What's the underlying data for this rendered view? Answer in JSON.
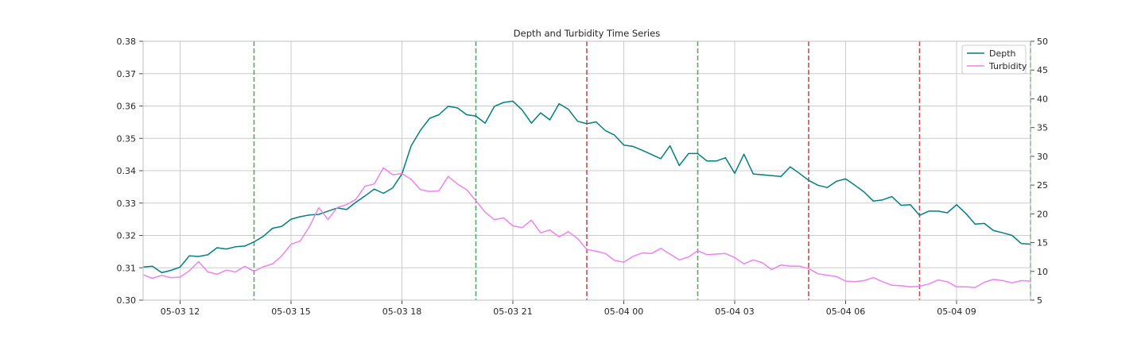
{
  "chart_data": {
    "type": "line",
    "title": "Depth and Turbidity Time Series",
    "xlabel": "",
    "ylabel": "",
    "grid": true,
    "legend_position": "top-right",
    "x_tick_labels": [
      "05-03 12",
      "05-03 15",
      "05-03 18",
      "05-03 21",
      "05-04 00",
      "05-04 03",
      "05-04 06",
      "05-04 09"
    ],
    "y_left_ticks": [
      "0.30",
      "0.31",
      "0.32",
      "0.33",
      "0.34",
      "0.35",
      "0.36",
      "0.37",
      "0.38"
    ],
    "y_right_ticks": [
      "5",
      "10",
      "15",
      "20",
      "25",
      "30",
      "35",
      "40",
      "45",
      "50"
    ],
    "ylim_left": [
      0.3,
      0.38
    ],
    "ylim_right": [
      5,
      50
    ],
    "x_start": "05-03 11:00",
    "x_end": "05-04 11:00",
    "series": [
      {
        "name": "Depth",
        "axis": "left",
        "color": "#008080",
        "points": [
          [
            "05-03 11:00",
            0.3102
          ],
          [
            "05-03 11:15",
            0.3105
          ],
          [
            "05-03 11:30",
            0.3085
          ],
          [
            "05-03 11:45",
            0.3092
          ],
          [
            "05-03 12:00",
            0.3102
          ],
          [
            "05-03 12:15",
            0.3137
          ],
          [
            "05-03 12:30",
            0.3135
          ],
          [
            "05-03 12:45",
            0.314
          ],
          [
            "05-03 13:00",
            0.3162
          ],
          [
            "05-03 13:15",
            0.3158
          ],
          [
            "05-03 13:30",
            0.3165
          ],
          [
            "05-03 13:45",
            0.3167
          ],
          [
            "05-03 14:00",
            0.318
          ],
          [
            "05-03 14:15",
            0.3197
          ],
          [
            "05-03 14:30",
            0.3222
          ],
          [
            "05-03 14:45",
            0.3228
          ],
          [
            "05-03 15:00",
            0.325
          ],
          [
            "05-03 15:15",
            0.3258
          ],
          [
            "05-03 15:30",
            0.3263
          ],
          [
            "05-03 15:45",
            0.3265
          ],
          [
            "05-03 16:00",
            0.3275
          ],
          [
            "05-03 16:15",
            0.3285
          ],
          [
            "05-03 16:30",
            0.328
          ],
          [
            "05-03 16:45",
            0.3302
          ],
          [
            "05-03 17:00",
            0.3322
          ],
          [
            "05-03 17:15",
            0.3343
          ],
          [
            "05-03 17:30",
            0.333
          ],
          [
            "05-03 17:45",
            0.3347
          ],
          [
            "05-03 18:00",
            0.339
          ],
          [
            "05-03 18:15",
            0.3477
          ],
          [
            "05-03 18:30",
            0.3525
          ],
          [
            "05-03 18:45",
            0.3562
          ],
          [
            "05-03 19:00",
            0.3573
          ],
          [
            "05-03 19:15",
            0.3599
          ],
          [
            "05-03 19:30",
            0.3594
          ],
          [
            "05-03 19:45",
            0.3573
          ],
          [
            "05-03 20:00",
            0.3569
          ],
          [
            "05-03 20:15",
            0.3547
          ],
          [
            "05-03 20:30",
            0.3599
          ],
          [
            "05-03 20:45",
            0.3611
          ],
          [
            "05-03 21:00",
            0.3615
          ],
          [
            "05-03 21:15",
            0.3588
          ],
          [
            "05-03 21:30",
            0.3547
          ],
          [
            "05-03 21:45",
            0.3579
          ],
          [
            "05-03 22:00",
            0.3557
          ],
          [
            "05-03 22:15",
            0.3607
          ],
          [
            "05-03 22:30",
            0.359
          ],
          [
            "05-03 22:45",
            0.3553
          ],
          [
            "05-03 23:00",
            0.3545
          ],
          [
            "05-03 23:15",
            0.3551
          ],
          [
            "05-03 23:30",
            0.3524
          ],
          [
            "05-03 23:45",
            0.351
          ],
          [
            "05-04 00:00",
            0.3479
          ],
          [
            "05-04 00:15",
            0.3475
          ],
          [
            "05-04 00:30",
            0.3463
          ],
          [
            "05-04 00:45",
            0.345
          ],
          [
            "05-04 01:00",
            0.3437
          ],
          [
            "05-04 01:15",
            0.3477
          ],
          [
            "05-04 01:30",
            0.3416
          ],
          [
            "05-04 01:45",
            0.3453
          ],
          [
            "05-04 02:00",
            0.3453
          ],
          [
            "05-04 02:15",
            0.343
          ],
          [
            "05-04 02:30",
            0.343
          ],
          [
            "05-04 02:45",
            0.344
          ],
          [
            "05-04 03:00",
            0.3392
          ],
          [
            "05-04 03:15",
            0.3451
          ],
          [
            "05-04 03:30",
            0.339
          ],
          [
            "05-04 04:15",
            0.3382
          ],
          [
            "05-04 04:30",
            0.3412
          ],
          [
            "05-04 04:45",
            0.3392
          ],
          [
            "05-04 05:00",
            0.337
          ],
          [
            "05-04 05:15",
            0.3355
          ],
          [
            "05-04 05:30",
            0.3348
          ],
          [
            "05-04 05:45",
            0.3367
          ],
          [
            "05-04 06:00",
            0.3375
          ],
          [
            "05-04 06:15",
            0.3355
          ],
          [
            "05-04 06:30",
            0.3334
          ],
          [
            "05-04 06:45",
            0.3306
          ],
          [
            "05-04 07:00",
            0.331
          ],
          [
            "05-04 07:15",
            0.332
          ],
          [
            "05-04 07:30",
            0.3293
          ],
          [
            "05-04 07:45",
            0.3295
          ],
          [
            "05-04 08:00",
            0.3262
          ],
          [
            "05-04 08:15",
            0.3275
          ],
          [
            "05-04 08:30",
            0.3275
          ],
          [
            "05-04 08:45",
            0.327
          ],
          [
            "05-04 09:00",
            0.3295
          ],
          [
            "05-04 09:15",
            0.3268
          ],
          [
            "05-04 09:30",
            0.3235
          ],
          [
            "05-04 09:45",
            0.3237
          ],
          [
            "05-04 10:00",
            0.3215
          ],
          [
            "05-04 10:15",
            0.3208
          ],
          [
            "05-04 10:30",
            0.32
          ],
          [
            "05-04 10:45",
            0.3175
          ],
          [
            "05-04 11:00",
            0.3173
          ]
        ]
      },
      {
        "name": "Turbidity",
        "axis": "right",
        "color": "#ee82ee",
        "points": [
          [
            "05-03 11:00",
            9.4
          ],
          [
            "05-03 11:15",
            8.8
          ],
          [
            "05-03 11:30",
            9.3
          ],
          [
            "05-03 11:45",
            8.9
          ],
          [
            "05-03 12:00",
            9.0
          ],
          [
            "05-03 12:15",
            10.1
          ],
          [
            "05-03 12:30",
            11.7
          ],
          [
            "05-03 12:45",
            9.9
          ],
          [
            "05-03 13:00",
            9.5
          ],
          [
            "05-03 13:15",
            10.2
          ],
          [
            "05-03 13:30",
            9.9
          ],
          [
            "05-03 13:45",
            10.9
          ],
          [
            "05-03 14:00",
            10.0
          ],
          [
            "05-03 14:15",
            10.8
          ],
          [
            "05-03 14:30",
            11.3
          ],
          [
            "05-03 14:45",
            12.7
          ],
          [
            "05-03 15:00",
            14.7
          ],
          [
            "05-03 15:15",
            15.3
          ],
          [
            "05-03 15:30",
            17.8
          ],
          [
            "05-03 15:45",
            21.1
          ],
          [
            "05-03 16:00",
            19.0
          ],
          [
            "05-03 16:15",
            21.1
          ],
          [
            "05-03 16:30",
            21.6
          ],
          [
            "05-03 16:45",
            22.5
          ],
          [
            "05-03 17:00",
            24.8
          ],
          [
            "05-03 17:15",
            25.2
          ],
          [
            "05-03 17:30",
            28.0
          ],
          [
            "05-03 17:45",
            26.8
          ],
          [
            "05-03 18:00",
            27.0
          ],
          [
            "05-03 18:15",
            26.0
          ],
          [
            "05-03 18:30",
            24.2
          ],
          [
            "05-03 18:45",
            23.9
          ],
          [
            "05-03 19:00",
            24.0
          ],
          [
            "05-03 19:15",
            26.5
          ],
          [
            "05-03 19:30",
            25.2
          ],
          [
            "05-03 19:45",
            24.2
          ],
          [
            "05-03 20:00",
            22.3
          ],
          [
            "05-03 20:15",
            20.3
          ],
          [
            "05-03 20:30",
            19.0
          ],
          [
            "05-03 20:45",
            19.3
          ],
          [
            "05-03 21:00",
            17.9
          ],
          [
            "05-03 21:15",
            17.6
          ],
          [
            "05-03 21:30",
            18.9
          ],
          [
            "05-03 21:45",
            16.7
          ],
          [
            "05-03 22:00",
            17.2
          ],
          [
            "05-03 22:15",
            16.0
          ],
          [
            "05-03 22:30",
            16.9
          ],
          [
            "05-03 22:45",
            15.7
          ],
          [
            "05-03 23:00",
            13.8
          ],
          [
            "05-03 23:15",
            13.5
          ],
          [
            "05-03 23:30",
            13.1
          ],
          [
            "05-03 23:45",
            11.9
          ],
          [
            "05-04 00:00",
            11.6
          ],
          [
            "05-04 00:15",
            12.6
          ],
          [
            "05-04 00:30",
            13.2
          ],
          [
            "05-04 00:45",
            13.1
          ],
          [
            "05-04 01:00",
            14.0
          ],
          [
            "05-04 01:15",
            13.0
          ],
          [
            "05-04 01:30",
            12.0
          ],
          [
            "05-04 01:45",
            12.5
          ],
          [
            "05-04 02:00",
            13.6
          ],
          [
            "05-04 02:15",
            12.9
          ],
          [
            "05-04 02:30",
            13.0
          ],
          [
            "05-04 02:45",
            13.1
          ],
          [
            "05-04 03:00",
            12.4
          ],
          [
            "05-04 03:15",
            11.3
          ],
          [
            "05-04 03:30",
            12.0
          ],
          [
            "05-04 03:45",
            11.5
          ],
          [
            "05-04 04:00",
            10.3
          ],
          [
            "05-04 04:15",
            11.1
          ],
          [
            "05-04 04:30",
            10.9
          ],
          [
            "05-04 04:45",
            10.9
          ],
          [
            "05-04 05:00",
            10.5
          ],
          [
            "05-04 05:15",
            9.6
          ],
          [
            "05-04 05:30",
            9.3
          ],
          [
            "05-04 05:45",
            9.1
          ],
          [
            "05-04 06:00",
            8.3
          ],
          [
            "05-04 06:15",
            8.2
          ],
          [
            "05-04 06:30",
            8.4
          ],
          [
            "05-04 06:45",
            8.9
          ],
          [
            "05-04 07:00",
            8.2
          ],
          [
            "05-04 07:15",
            7.6
          ],
          [
            "05-04 07:30",
            7.5
          ],
          [
            "05-04 07:45",
            7.3
          ],
          [
            "05-04 08:00",
            7.4
          ],
          [
            "05-04 08:15",
            7.8
          ],
          [
            "05-04 08:30",
            8.5
          ],
          [
            "05-04 08:45",
            8.2
          ],
          [
            "05-04 09:00",
            7.3
          ],
          [
            "05-04 09:15",
            7.3
          ],
          [
            "05-04 09:30",
            7.2
          ],
          [
            "05-04 09:45",
            8.1
          ],
          [
            "05-04 10:00",
            8.6
          ],
          [
            "05-04 10:15",
            8.4
          ],
          [
            "05-04 10:30",
            8.0
          ],
          [
            "05-04 10:45",
            8.4
          ],
          [
            "05-04 11:00",
            8.3
          ]
        ]
      }
    ],
    "vlines": [
      {
        "x": "05-03 14:00",
        "color": "#55a868"
      },
      {
        "x": "05-03 20:00",
        "color": "#55a868"
      },
      {
        "x": "05-03 23:00",
        "color": "#c44e52"
      },
      {
        "x": "05-04 02:00",
        "color": "#55a868"
      },
      {
        "x": "05-04 05:00",
        "color": "#c44e52"
      },
      {
        "x": "05-04 08:00",
        "color": "#c44e52"
      },
      {
        "x": "05-04 11:00",
        "color": "#55a868"
      }
    ]
  }
}
